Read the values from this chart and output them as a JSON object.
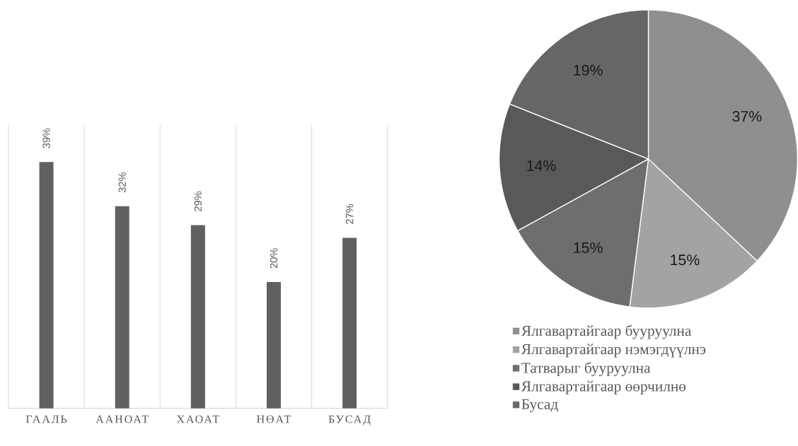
{
  "chart_data": [
    {
      "type": "bar",
      "categories": [
        "ГААЛЬ",
        "ААНОАТ",
        "ХАОАТ",
        "НӨАТ",
        "БУСАД"
      ],
      "values": [
        39,
        32,
        29,
        20,
        27
      ],
      "value_labels": [
        "39%",
        "32%",
        "29%",
        "20%",
        "27%"
      ],
      "color": "#606060",
      "grid": "x"
    },
    {
      "type": "pie",
      "categories": [
        "Ялгавартайгаар бууруулна",
        "Ялгавартайгаар нэмэгдүүлнэ",
        "Татварыг бууруулна",
        "Ялгавартайгаар өөрчилнө",
        "Бусад"
      ],
      "values": [
        37,
        15,
        15,
        14,
        19
      ],
      "value_labels": [
        "37%",
        "15%",
        "15%",
        "14%",
        "19%"
      ],
      "colors": [
        "#8f8f8f",
        "#a3a3a3",
        "#6e6e6e",
        "#595959",
        "#666666"
      ],
      "legend": "bottom"
    }
  ]
}
